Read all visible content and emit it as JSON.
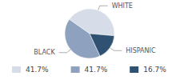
{
  "chart_data": {
    "type": "pie",
    "categories": [
      "WHITE",
      "BLACK",
      "HISPANIC"
    ],
    "values": [
      41.7,
      41.7,
      16.7
    ],
    "value_labels": [
      "41.7%",
      "41.7%",
      "16.7%"
    ],
    "colors": [
      "#d6dde8",
      "#8ea2bf",
      "#2f5272"
    ],
    "legend": "bottom"
  }
}
